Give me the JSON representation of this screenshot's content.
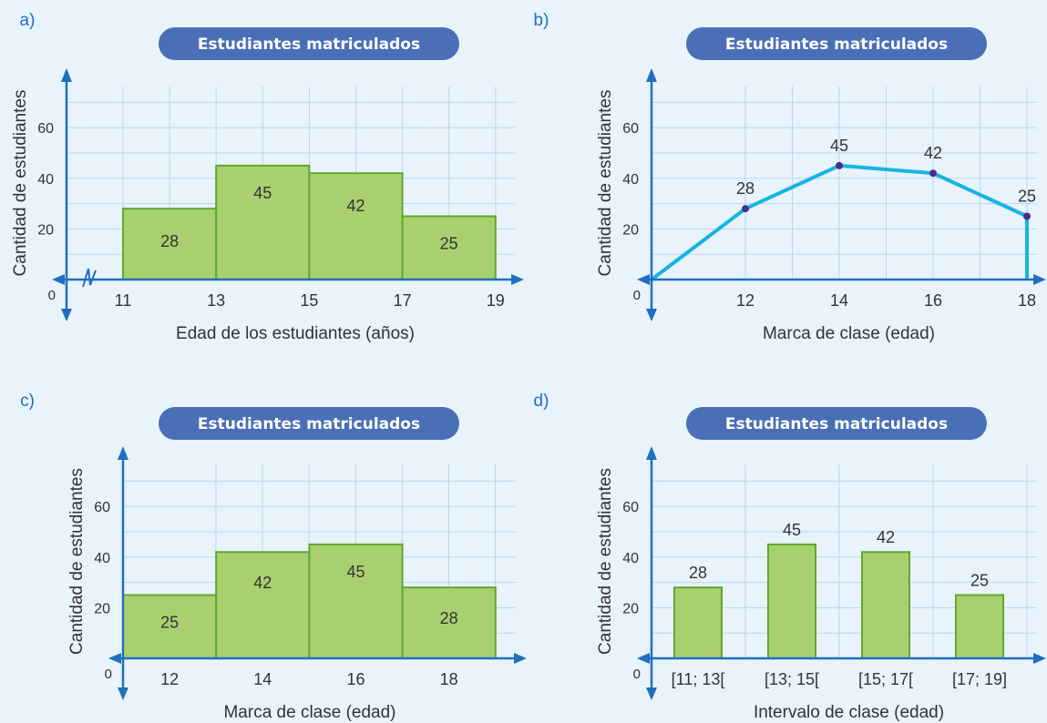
{
  "chart_data": [
    {
      "panel": "a)",
      "type": "bar",
      "title": "Estudiantes matriculados",
      "xlabel": "Edad de los estudiantes (años)",
      "ylabel": "Cantidad de estudiantes",
      "x_ticks": [
        "11",
        "13",
        "15",
        "17",
        "19"
      ],
      "y_ticks": [
        "20",
        "40",
        "60"
      ],
      "origin_label": "0",
      "bins": [
        [
          11,
          13
        ],
        [
          13,
          15
        ],
        [
          15,
          17
        ],
        [
          17,
          19
        ]
      ],
      "values": [
        28,
        45,
        42,
        25
      ],
      "bar_labels": [
        "28",
        "45",
        "42",
        "25"
      ],
      "ylim": [
        0,
        80
      ],
      "grid": true,
      "axis_break": true
    },
    {
      "panel": "b)",
      "type": "line",
      "title": "Estudiantes matriculados",
      "xlabel": "Marca de clase (edad)",
      "ylabel": "Cantidad de estudiantes",
      "x_ticks": [
        "12",
        "14",
        "16",
        "18"
      ],
      "y_ticks": [
        "20",
        "40",
        "60"
      ],
      "origin_label": "0",
      "x": [
        12,
        14,
        16,
        18
      ],
      "values": [
        28,
        45,
        42,
        25
      ],
      "point_labels": [
        "28",
        "45",
        "42",
        "25"
      ],
      "start_point": [
        10,
        0
      ],
      "end_point": [
        18,
        0
      ],
      "ylim": [
        0,
        80
      ],
      "grid": true
    },
    {
      "panel": "c)",
      "type": "bar",
      "title": "Estudiantes matriculados",
      "xlabel": "Marca de clase (edad)",
      "ylabel": "Cantidad de estudiantes",
      "x_ticks": [
        "12",
        "14",
        "16",
        "18"
      ],
      "y_ticks": [
        "20",
        "40",
        "60"
      ],
      "origin_label": "0",
      "categories": [
        "12",
        "14",
        "16",
        "18"
      ],
      "values": [
        25,
        42,
        45,
        28
      ],
      "bar_labels": [
        "25",
        "42",
        "45",
        "28"
      ],
      "ylim": [
        0,
        80
      ],
      "grid": true
    },
    {
      "panel": "d)",
      "type": "bar",
      "title": "Estudiantes matriculados",
      "xlabel": "Intervalo de clase (edad)",
      "ylabel": "Cantidad de estudiantes",
      "x_ticks": [
        "[11; 13[",
        "[13; 15[",
        "[15; 17[",
        "[17; 19]"
      ],
      "y_ticks": [
        "20",
        "40",
        "60"
      ],
      "origin_label": "0",
      "categories": [
        "[11; 13[",
        "[13; 15[",
        "[15; 17[",
        "[17; 19]"
      ],
      "values": [
        28,
        45,
        42,
        25
      ],
      "bar_labels": [
        "28",
        "45",
        "42",
        "25"
      ],
      "ylim": [
        0,
        80
      ],
      "grid": true
    }
  ],
  "colors": {
    "axis": "#1f6fc0",
    "grid": "#b9d6f0",
    "bar_fill": "#a9d06f",
    "bar_stroke": "#5fa82e",
    "line": "#17b4e2",
    "point": "#4a2d8c",
    "title_bg": "#4a6fb7",
    "background": "#e9f3fb"
  }
}
